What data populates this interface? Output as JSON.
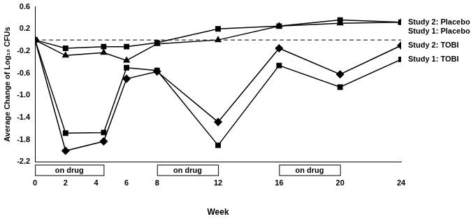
{
  "chart_data": {
    "type": "line",
    "x_label": "Week",
    "y_label": "Average Change of Log₁₀ CFUs",
    "x": [
      0,
      2,
      4.5,
      6,
      8,
      12,
      16,
      20,
      24
    ],
    "series": [
      {
        "name": "Study 2: Placebo",
        "color": "#000000",
        "marker": "square",
        "line_style": "solid",
        "values": [
          0,
          -0.15,
          -0.12,
          -0.12,
          -0.05,
          0.2,
          0.25,
          0.36,
          0.32
        ]
      },
      {
        "name": "Study 1: Placebo",
        "color": "#000000",
        "marker": "triangle",
        "line_style": "solid",
        "values": [
          0,
          -0.28,
          -0.23,
          -0.37,
          -0.07,
          0.0,
          0.25,
          0.3,
          0.32
        ]
      },
      {
        "name": "Study 2: TOBI",
        "color": "#000000",
        "marker": "diamond",
        "line_style": "solid",
        "values": [
          0,
          -2.0,
          -1.83,
          -0.7,
          -0.57,
          -1.48,
          -0.15,
          -0.62,
          -0.1
        ]
      },
      {
        "name": "Study 1: TOBI",
        "color": "#000000",
        "marker": "square",
        "line_style": "solid",
        "values": [
          0,
          -1.68,
          -1.67,
          -0.5,
          -0.55,
          -1.9,
          -0.46,
          -0.85,
          -0.35
        ]
      }
    ],
    "xlim": [
      0,
      24
    ],
    "xticks": [
      0,
      2,
      4,
      6,
      8,
      12,
      16,
      20,
      24
    ],
    "ylim": [
      -2.2,
      0.6
    ],
    "yticks": [
      -2.2,
      -1.8,
      -1.4,
      {
        "value": -1,
        "label": "-1.0"
      },
      -0.6,
      -0.2,
      0.2,
      0.6
    ],
    "grid": false,
    "reference_line": {
      "y": 0,
      "line_style": "dashed"
    },
    "annotations": [
      {
        "text": "on drug",
        "x_start": 0,
        "x_end": 4.5
      },
      {
        "text": "on drug",
        "x_start": 8,
        "x_end": 12
      },
      {
        "text": "on drug",
        "x_start": 16,
        "x_end": 20
      }
    ]
  }
}
